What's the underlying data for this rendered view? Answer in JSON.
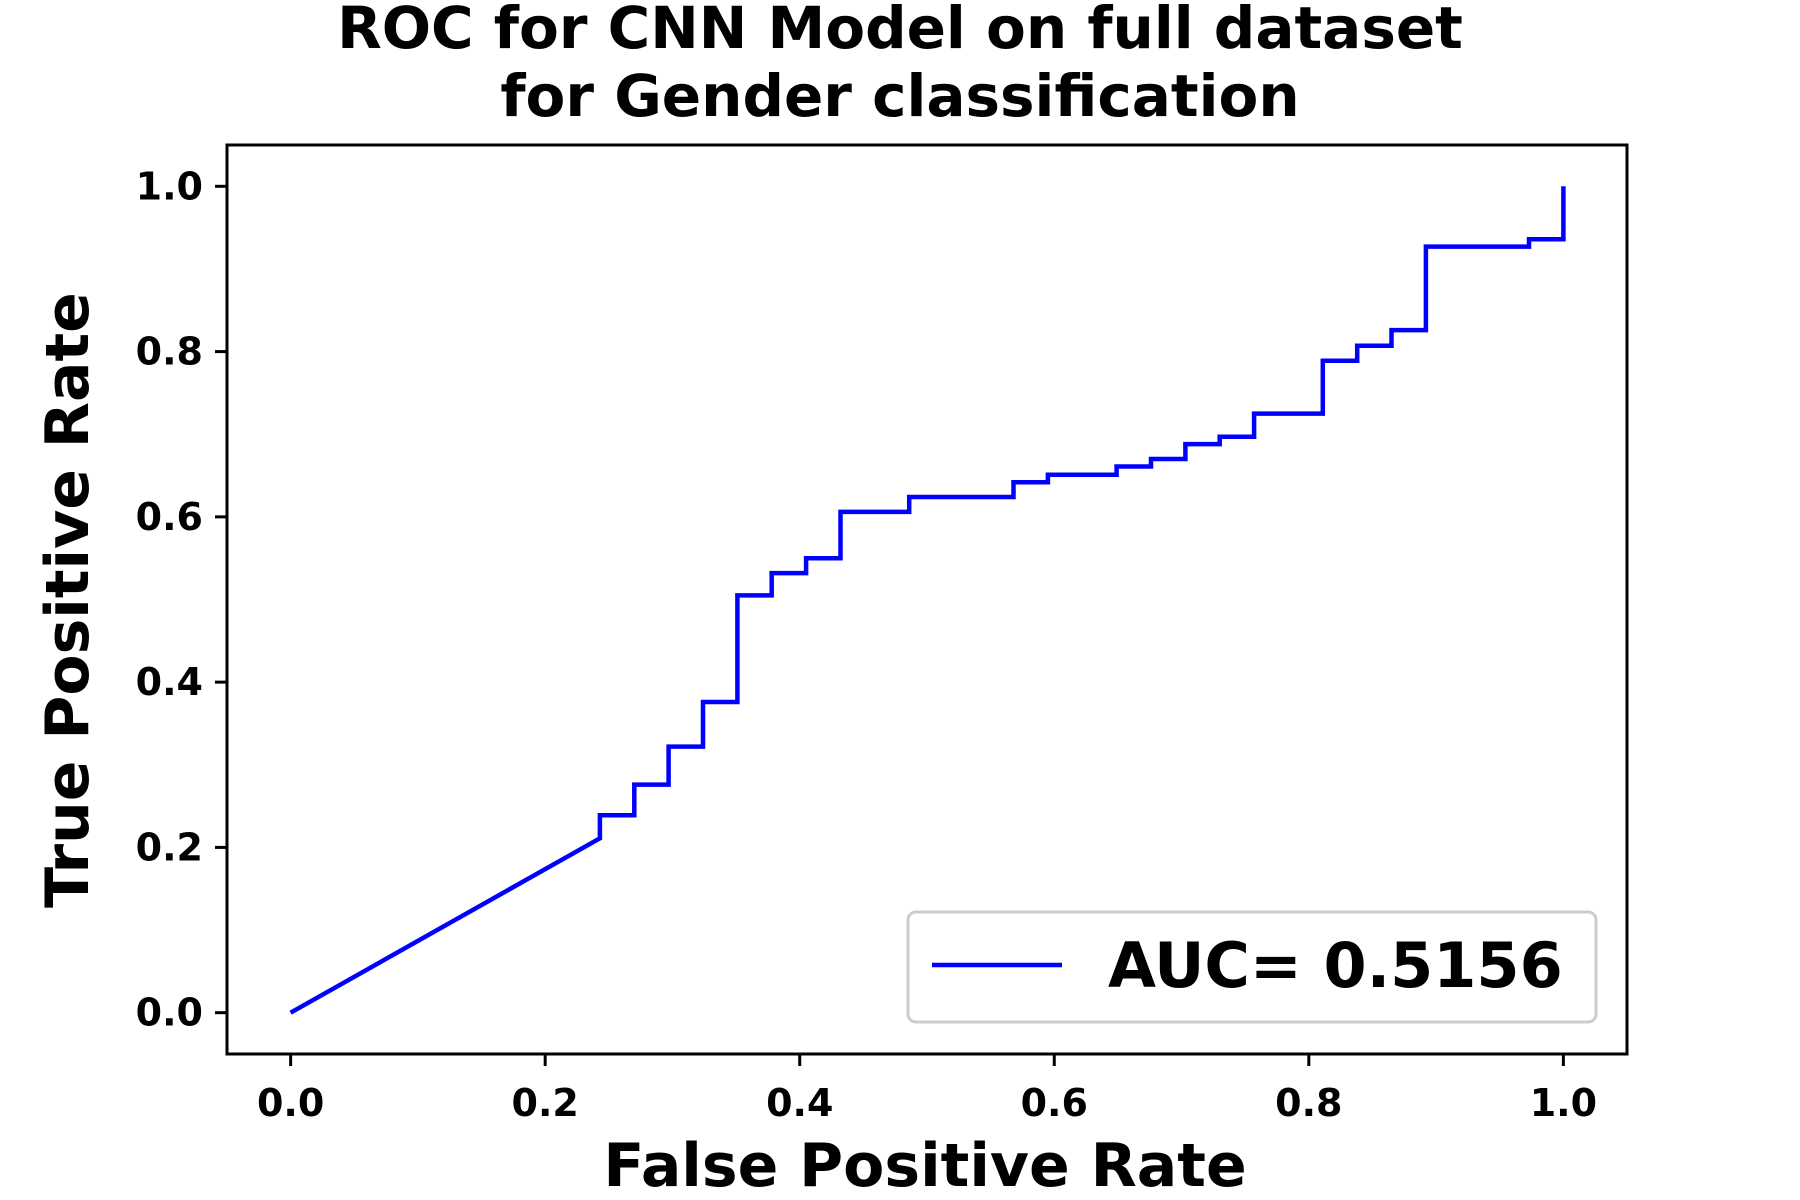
{
  "chart_data": {
    "type": "line",
    "title_lines": [
      "ROC for CNN Model on full dataset",
      "for Gender classification"
    ],
    "xlabel": "False Positive Rate",
    "ylabel": "True Positive Rate",
    "xlim": [
      -0.05,
      1.05
    ],
    "ylim": [
      -0.05,
      1.05
    ],
    "xticks": [
      0.0,
      0.2,
      0.4,
      0.6,
      0.8,
      1.0
    ],
    "yticks": [
      0.0,
      0.2,
      0.4,
      0.6,
      0.8,
      1.0
    ],
    "xtick_labels": [
      "0.0",
      "0.2",
      "0.4",
      "0.6",
      "0.8",
      "1.0"
    ],
    "ytick_labels": [
      "0.0",
      "0.2",
      "0.4",
      "0.6",
      "0.8",
      "1.0"
    ],
    "grid": false,
    "legend_position": "lower-right",
    "series": [
      {
        "name": "AUC= 0.5156",
        "color": "#0000ff",
        "x": [
          0.0,
          0.243,
          0.243,
          0.27,
          0.27,
          0.297,
          0.297,
          0.324,
          0.324,
          0.351,
          0.351,
          0.378,
          0.378,
          0.405,
          0.405,
          0.432,
          0.432,
          0.486,
          0.486,
          0.568,
          0.568,
          0.595,
          0.595,
          0.649,
          0.649,
          0.676,
          0.676,
          0.703,
          0.703,
          0.73,
          0.73,
          0.757,
          0.757,
          0.811,
          0.811,
          0.838,
          0.838,
          0.865,
          0.865,
          0.892,
          0.892,
          0.973,
          0.973,
          1.0,
          1.0
        ],
        "y": [
          0.0,
          0.211,
          0.239,
          0.239,
          0.276,
          0.276,
          0.322,
          0.322,
          0.376,
          0.376,
          0.505,
          0.505,
          0.532,
          0.532,
          0.55,
          0.55,
          0.606,
          0.606,
          0.624,
          0.624,
          0.642,
          0.642,
          0.651,
          0.651,
          0.661,
          0.661,
          0.67,
          0.67,
          0.688,
          0.688,
          0.697,
          0.697,
          0.725,
          0.725,
          0.789,
          0.789,
          0.807,
          0.807,
          0.826,
          0.826,
          0.927,
          0.927,
          0.936,
          0.936,
          1.0
        ]
      }
    ]
  }
}
